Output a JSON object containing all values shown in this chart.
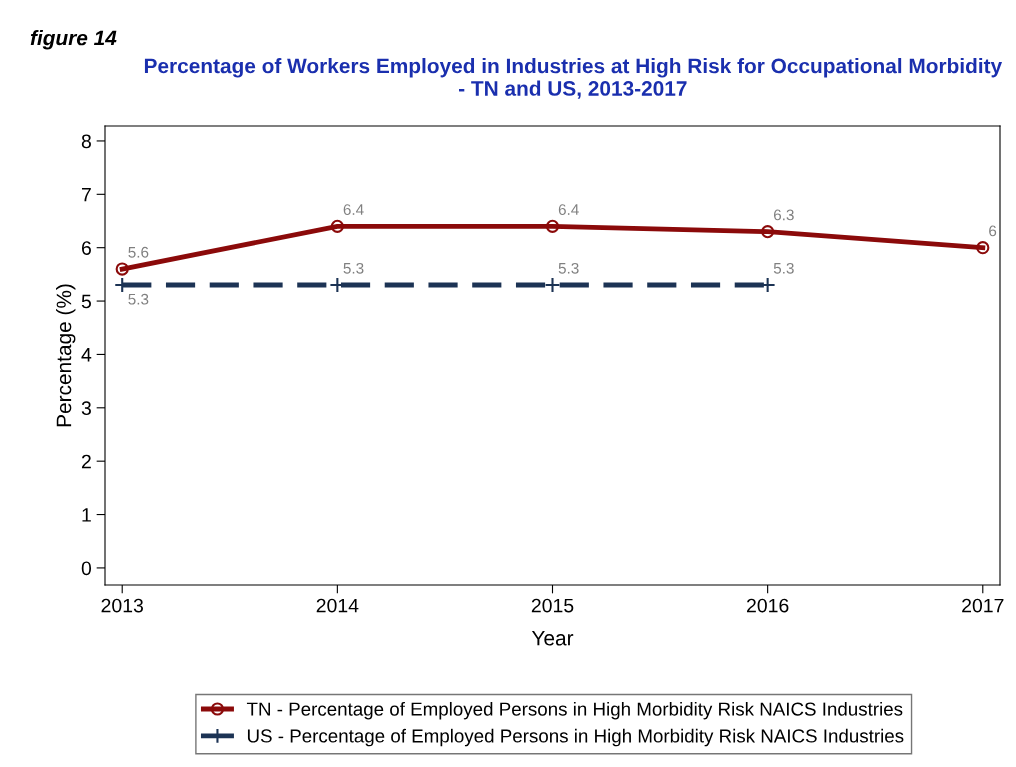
{
  "chart_data": {
    "type": "line",
    "title": "Percentage of Workers Employed in Industries at High Risk for Occupational Morbidity\n- TN and US, 2013-2017",
    "annotations": [
      "figure 14"
    ],
    "xlabel": "Year",
    "ylabel": "Percentage (%)",
    "x": [
      2013,
      2014,
      2015,
      2016,
      2017
    ],
    "series": [
      {
        "name": "TN - Percentage of Employed Persons in High Morbidity Risk NAICS Industries",
        "color": "#8b0a0a",
        "values": [
          5.6,
          6.4,
          6.4,
          6.3,
          6
        ],
        "marker": "circle",
        "line_style": "solid"
      },
      {
        "name": "US - Percentage of Employed Persons in High Morbidity Risk NAICS Industries",
        "color": "#1c3354",
        "values": [
          5.3,
          5.3,
          5.3,
          5.3,
          null
        ],
        "marker": "cross",
        "line_style": "dashed"
      }
    ],
    "xlim": [
      2012.92,
      2017.08
    ],
    "xticks": [
      2013,
      2014,
      2015,
      2016,
      2017
    ],
    "ylim": [
      -0.32,
      8.28
    ],
    "yticks": [
      0,
      1,
      2,
      3,
      4,
      5,
      6,
      7,
      8
    ],
    "data_labels": true,
    "grid": false,
    "legend": "bottom"
  }
}
